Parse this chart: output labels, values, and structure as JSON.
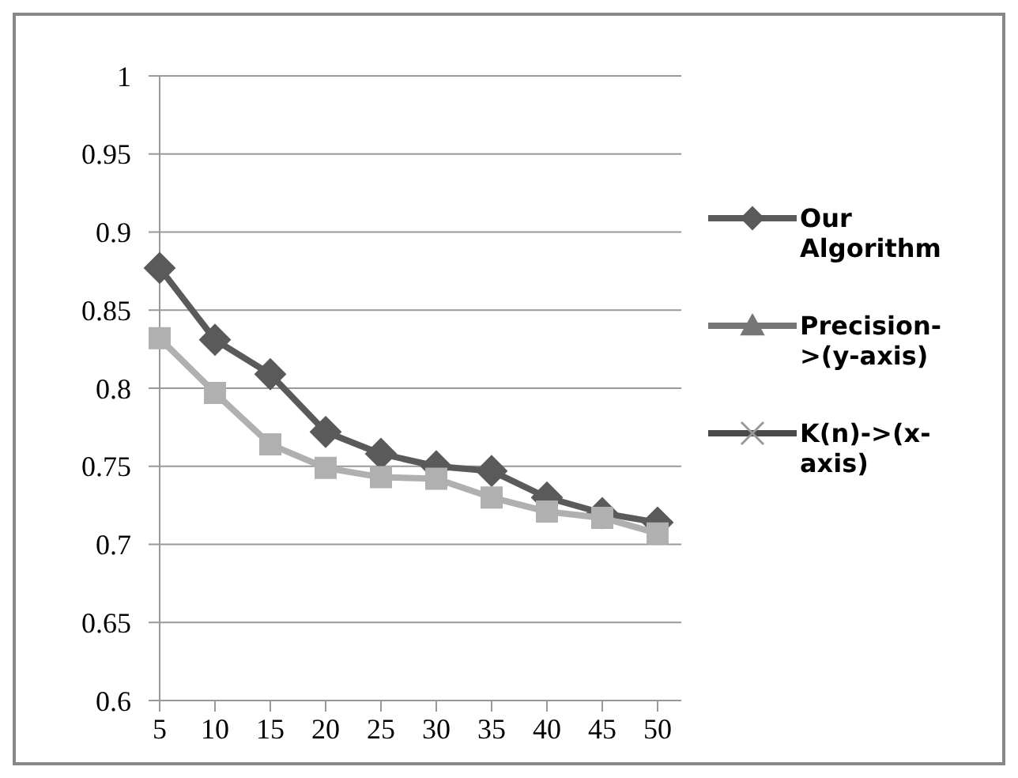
{
  "chart_data": {
    "type": "line",
    "categories": [
      "5",
      "10",
      "15",
      "20",
      "25",
      "30",
      "35",
      "40",
      "45",
      "50"
    ],
    "series": [
      {
        "name": "Our Algorithm",
        "color": "#5a5a5a",
        "marker": "diamond",
        "values": [
          0.877,
          0.831,
          0.809,
          0.772,
          0.758,
          0.75,
          0.747,
          0.73,
          0.72,
          0.714
        ]
      },
      {
        "color": "#b0b0b0",
        "marker": "square",
        "values": [
          0.832,
          0.797,
          0.764,
          0.749,
          0.743,
          0.742,
          0.73,
          0.721,
          0.717,
          0.707
        ]
      },
      {
        "name": "Precision->(y-axis)",
        "color": "#777777",
        "marker": "triangle",
        "values": [
          null,
          null,
          null,
          null,
          null,
          null,
          null,
          null,
          null,
          null
        ]
      },
      {
        "name": "K(n)->(x-axis)",
        "color": "#4a4a4a",
        "marker": "cross",
        "values": [
          null,
          null,
          null,
          null,
          null,
          null,
          null,
          null,
          null,
          null
        ]
      }
    ],
    "ylim": [
      0.6,
      1
    ],
    "yticks": [
      0.6,
      0.65,
      0.7,
      0.75,
      0.8,
      0.85,
      0.9,
      0.95,
      1
    ],
    "grid": "y",
    "legend": "right"
  }
}
